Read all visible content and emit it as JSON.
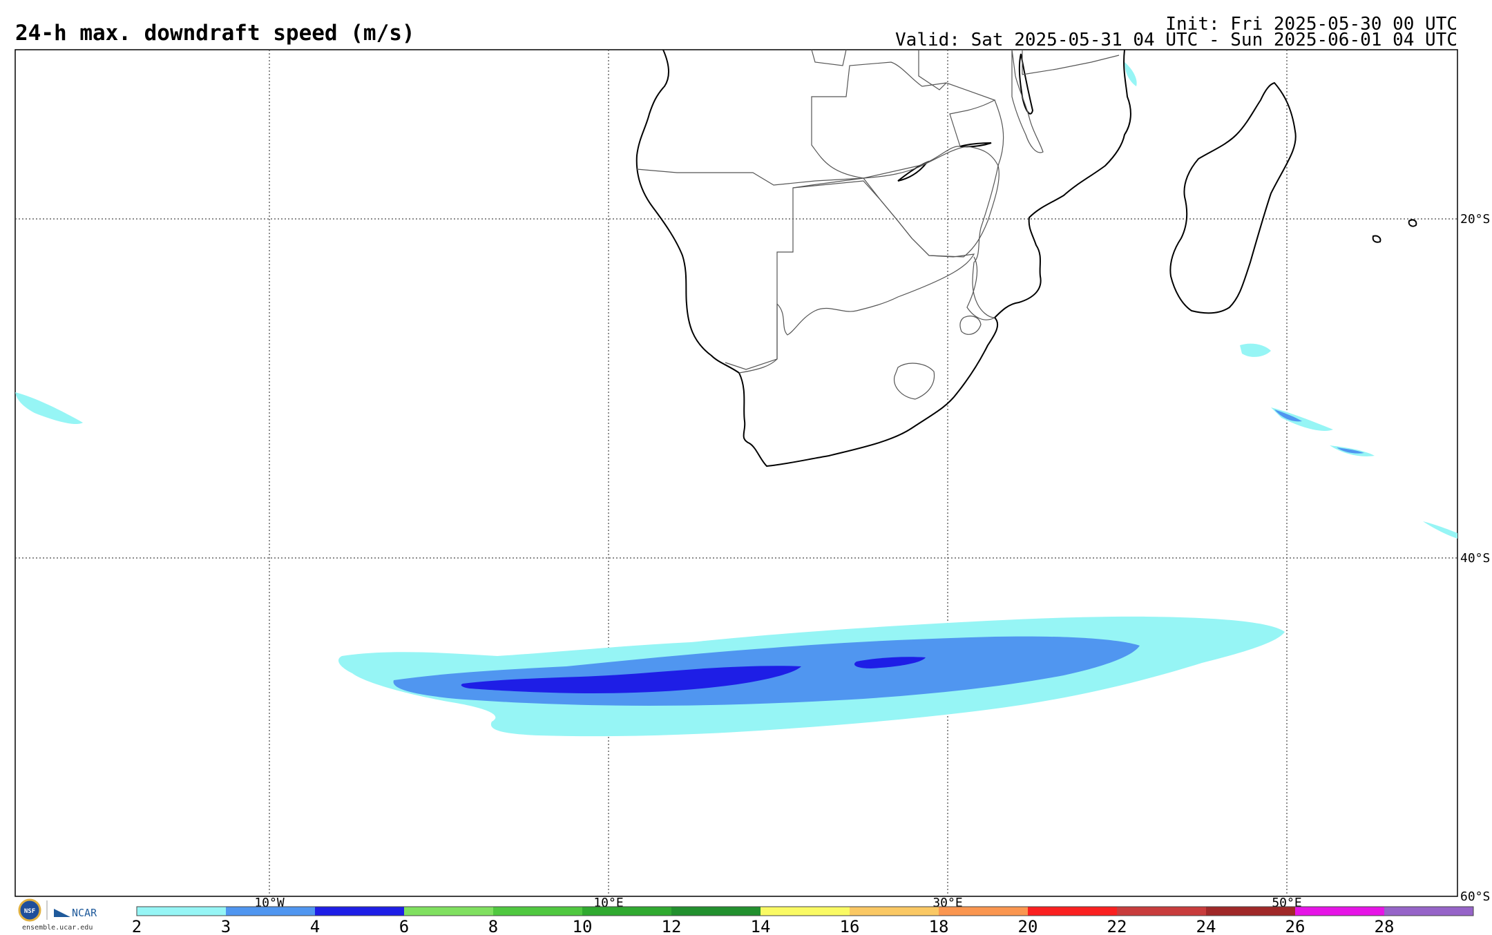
{
  "header": {
    "title": "24-h max. downdraft speed (m/s)",
    "init": "Init: Fri 2025-05-30 00 UTC",
    "valid": "Valid: Sat 2025-05-31 04 UTC - Sun 2025-06-01 04 UTC"
  },
  "map": {
    "lat_labels": [
      "20°S",
      "40°S",
      "60°S"
    ],
    "lon_labels": [
      "10°W",
      "10°E",
      "30°E",
      "50°E"
    ],
    "land_outline_color": "#000000",
    "border_color": "#555555",
    "gridline_style": "dotted"
  },
  "colorbar": {
    "ticks": [
      "2",
      "3",
      "4",
      "6",
      "8",
      "10",
      "12",
      "14",
      "16",
      "18",
      "20",
      "22",
      "24",
      "26",
      "28"
    ],
    "colors": [
      "#96f5f5",
      "#5096f0",
      "#1e1ee6",
      "#80e060",
      "#50c840",
      "#30aa30",
      "#22902e",
      "#fafa64",
      "#fac864",
      "#fa9650",
      "#fa2020",
      "#c83c3c",
      "#a02828",
      "#e614e6",
      "#9664c8"
    ]
  },
  "logos": {
    "nsf": "NSF",
    "ncar": "NCAR",
    "credit": "ensemble.ucar.edu"
  }
}
